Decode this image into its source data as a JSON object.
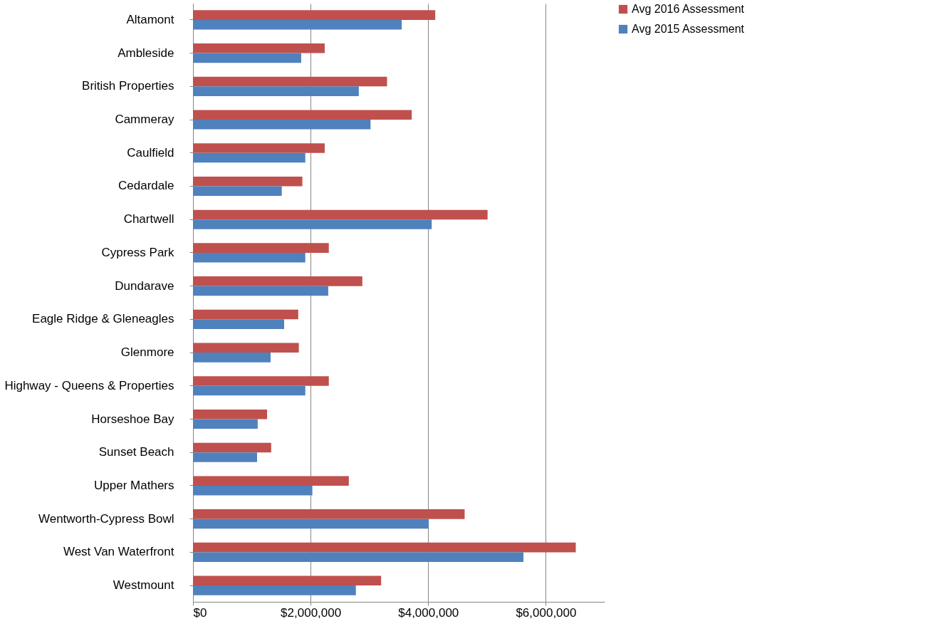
{
  "chart_data": {
    "type": "bar",
    "orientation": "horizontal",
    "categories": [
      "Altamont",
      "Ambleside",
      "British Properties",
      "Cammeray",
      "Caulfield",
      "Cedardale",
      "Chartwell",
      "Cypress Park",
      "Dundarave",
      "Eagle Ridge & Gleneagles",
      "Glenmore",
      "Highway - Queens & Properties",
      "Horseshoe Bay",
      "Sunset Beach",
      "Upper Mathers",
      "Wentworth-Cypress Bowl",
      "West Van Waterfront",
      "Westmount"
    ],
    "series": [
      {
        "name": "Avg 2016 Assessment",
        "color": "#c0504d",
        "values": [
          4120000,
          2240000,
          3300000,
          3720000,
          2240000,
          1860000,
          5010000,
          2310000,
          2880000,
          1790000,
          1800000,
          2310000,
          1260000,
          1330000,
          2650000,
          4620000,
          6510000,
          3200000
        ]
      },
      {
        "name": "Avg 2015 Assessment",
        "color": "#4f81bd",
        "values": [
          3550000,
          1840000,
          2820000,
          3020000,
          1910000,
          1510000,
          4060000,
          1910000,
          2300000,
          1550000,
          1320000,
          1910000,
          1100000,
          1090000,
          2030000,
          4010000,
          5620000,
          2770000
        ]
      }
    ],
    "xlim": [
      0,
      7000000
    ],
    "xticks": [
      {
        "value": 0,
        "label": "$0"
      },
      {
        "value": 2000000,
        "label": "$2,000,000"
      },
      {
        "value": 4000000,
        "label": "$4,000,000"
      },
      {
        "value": 6000000,
        "label": "$6,000,000"
      }
    ],
    "grid": "x",
    "legend": "right"
  }
}
